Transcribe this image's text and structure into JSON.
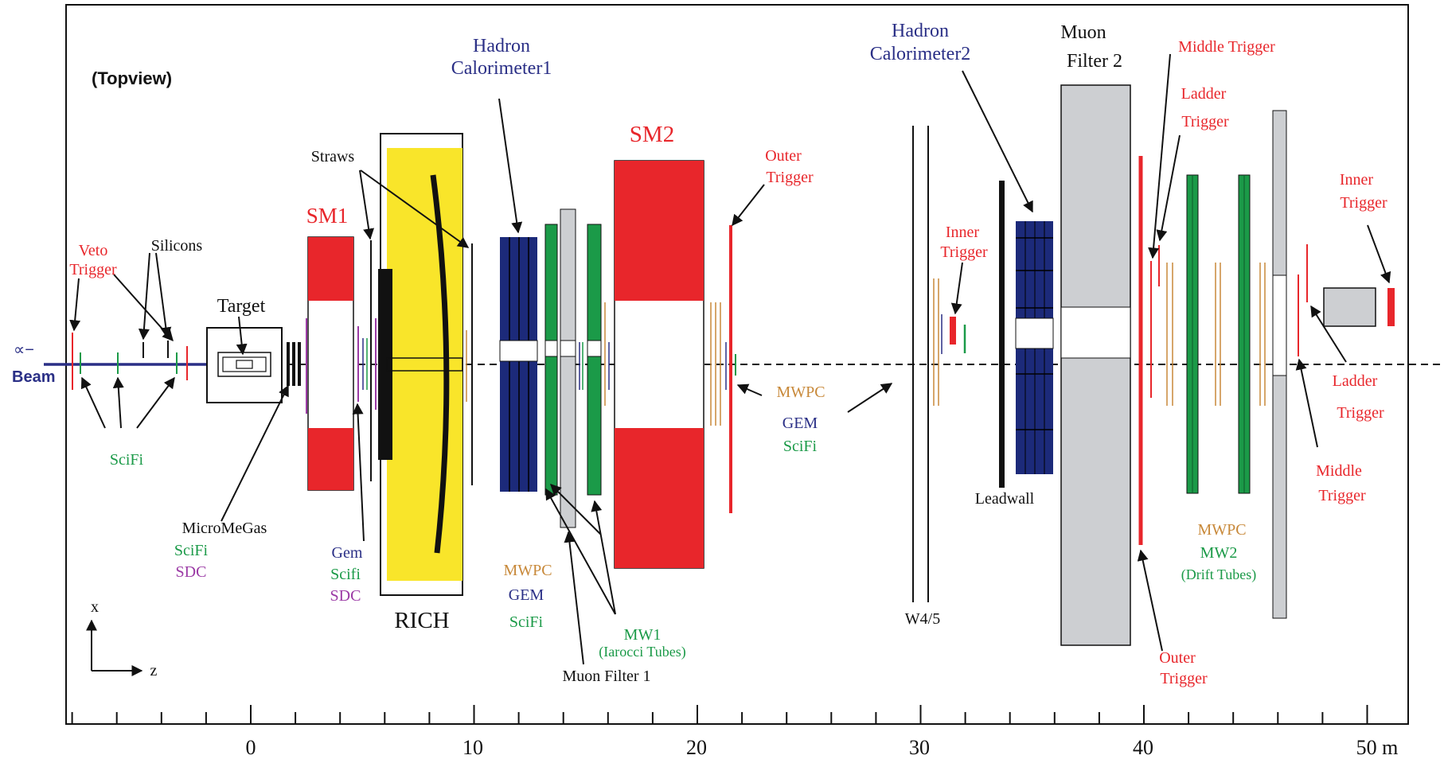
{
  "view_label": "(Topview)",
  "beam": {
    "symbol": "∝−",
    "label": "Beam"
  },
  "axis": {
    "x": "x",
    "z": "z",
    "ticks": [
      "0",
      "10",
      "20",
      "30",
      "40",
      "50 m"
    ]
  },
  "labels": {
    "veto_trigger": [
      "Veto",
      "Trigger"
    ],
    "silicons": "Silicons",
    "target": "Target",
    "scifi_front": "SciFi",
    "micromegas_group": [
      "MicroMeGas",
      "SciFi",
      "SDC"
    ],
    "gem_group": [
      "Gem",
      "Scifi",
      "SDC"
    ],
    "sm1": "SM1",
    "straws": "Straws",
    "rich": "RICH",
    "hcal1": [
      "Hadron",
      "Calorimeter1"
    ],
    "sm2": "SM2",
    "mwpc_group1": [
      "MWPC",
      "GEM",
      "SciFi"
    ],
    "muon_filter1": "Muon Filter 1",
    "mw1": [
      "MW1",
      "(Iarocci Tubes)"
    ],
    "outer_trigger1": [
      "Outer",
      "Trigger"
    ],
    "mwpc_group2": [
      "MWPC",
      "GEM",
      "SciFi"
    ],
    "inner_trigger1": [
      "Inner",
      "Trigger"
    ],
    "w45": "W4/5",
    "hcal2": [
      "Hadron",
      "Calorimeter2"
    ],
    "leadwall": "Leadwall",
    "muon_filter2": [
      "Muon",
      "Filter 2"
    ],
    "middle_trigger_top": "Middle Trigger",
    "ladder_trigger_top": [
      "Ladder",
      "Trigger"
    ],
    "outer_trigger2": [
      "Outer",
      "Trigger"
    ],
    "mwpc_mw2": [
      "MWPC",
      "MW2",
      "(Drift Tubes)"
    ],
    "inner_trigger2": [
      "Inner",
      "Trigger"
    ],
    "ladder_trigger_right": [
      "Ladder",
      "Trigger"
    ],
    "middle_trigger_right": [
      "Middle",
      "Trigger"
    ]
  },
  "colors": {
    "red": "#e8262b",
    "blue": "#2a2f86",
    "green": "#1b9a48",
    "purple": "#9b3aa5",
    "orange": "#c8893a",
    "yellow": "#f9e52a",
    "gray": "#cdcfd2",
    "darkgray": "#b8babd",
    "black": "#111111",
    "navy": "#1c2a7a"
  }
}
